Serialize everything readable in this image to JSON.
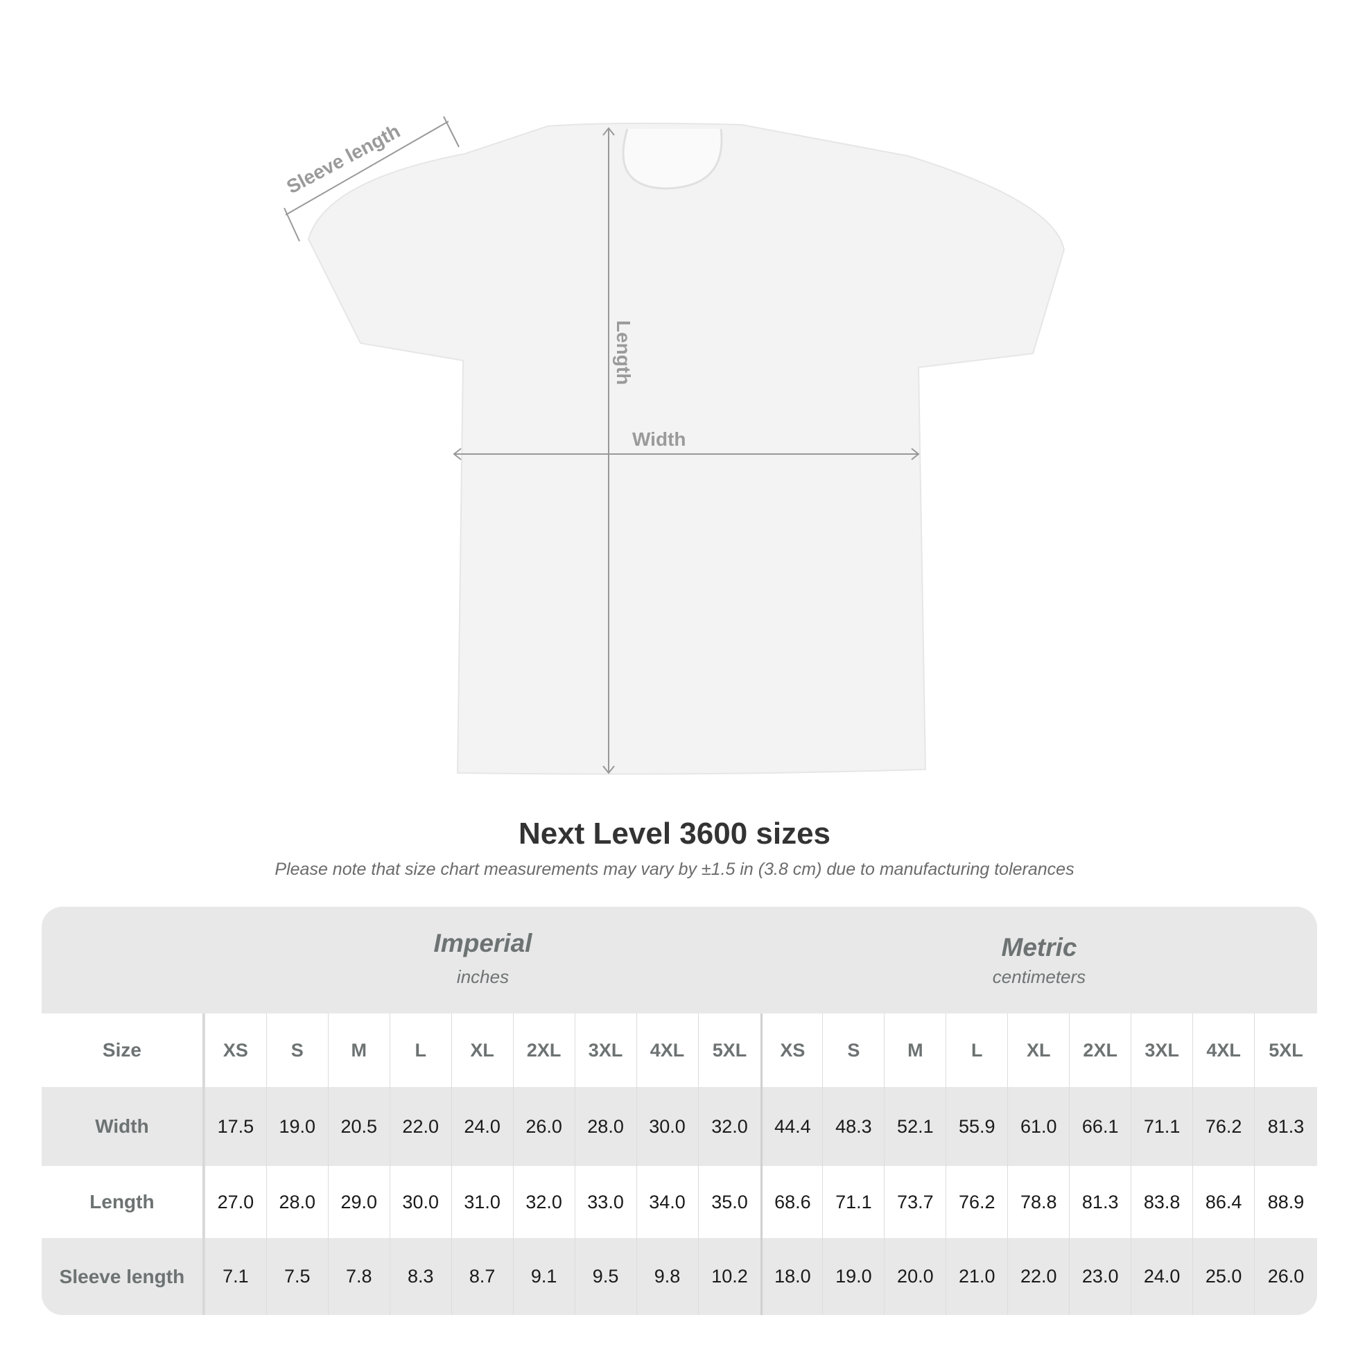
{
  "diagram": {
    "sleeve_label": "Sleeve length",
    "length_label": "Length",
    "width_label": "Width"
  },
  "title": "Next Level 3600 sizes",
  "note": "Please note that size chart measurements may vary by ±1.5 in (3.8 cm) due to manufacturing tolerances",
  "table": {
    "imperial": {
      "label": "Imperial",
      "unit": "inches"
    },
    "metric": {
      "label": "Metric",
      "unit": "centimeters"
    },
    "size_label": "Size",
    "sizes": [
      "XS",
      "S",
      "M",
      "L",
      "XL",
      "2XL",
      "3XL",
      "4XL",
      "5XL"
    ],
    "rows": [
      {
        "label": "Width",
        "imperial": [
          "17.5",
          "19.0",
          "20.5",
          "22.0",
          "24.0",
          "26.0",
          "28.0",
          "30.0",
          "32.0"
        ],
        "metric": [
          "44.4",
          "48.3",
          "52.1",
          "55.9",
          "61.0",
          "66.1",
          "71.1",
          "76.2",
          "81.3"
        ]
      },
      {
        "label": "Length",
        "imperial": [
          "27.0",
          "28.0",
          "29.0",
          "30.0",
          "31.0",
          "32.0",
          "33.0",
          "34.0",
          "35.0"
        ],
        "metric": [
          "68.6",
          "71.1",
          "73.7",
          "76.2",
          "78.8",
          "81.3",
          "83.8",
          "86.4",
          "88.9"
        ]
      },
      {
        "label": "Sleeve length",
        "imperial": [
          "7.1",
          "7.5",
          "7.8",
          "8.3",
          "8.7",
          "9.1",
          "9.5",
          "9.8",
          "10.2"
        ],
        "metric": [
          "18.0",
          "19.0",
          "20.0",
          "21.0",
          "22.0",
          "23.0",
          "24.0",
          "25.0",
          "26.0"
        ]
      }
    ]
  },
  "colors": {
    "header_bg": "#e8e8e8",
    "label_text": "#6d7272",
    "arrow": "#999999"
  }
}
